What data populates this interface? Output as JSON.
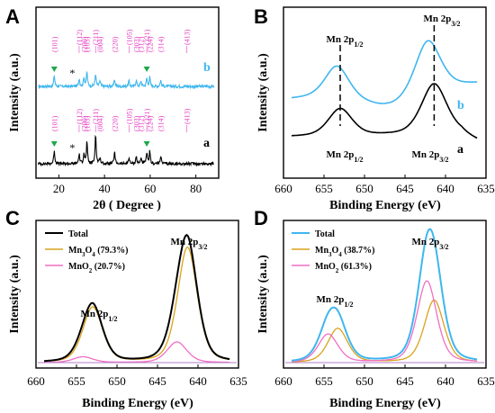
{
  "colors": {
    "blue": "#3fb6ee",
    "black": "#000000",
    "orange": "#d9a21b",
    "pink": "#ef6fc3",
    "magenta": "#e43fbf",
    "green": "#1fa84b"
  },
  "panels": {
    "A": {
      "label": "A",
      "xlabel": "2θ ( Degree )",
      "ylabel": "Intensity (a.u.)",
      "curve_b": "b",
      "curve_a": "a"
    },
    "B": {
      "label": "B",
      "xlabel": "Binding Energy (eV)",
      "ylabel": "Intensity (a.u.)",
      "curve_b": "b",
      "curve_a": "a",
      "ann_p12_top": "Mn 2p1/2",
      "ann_p32_top": "Mn 2p3/2",
      "ann_p12_bot": "Mn 2p1/2",
      "ann_p32_bot": "Mn 2p3/2"
    },
    "C": {
      "label": "C",
      "xlabel": "Binding Energy (eV)",
      "ylabel": "Intensity (a.u.)",
      "ann_p12": "Mn 2p1/2",
      "ann_p32": "Mn 2p3/2"
    },
    "D": {
      "label": "D",
      "xlabel": "Binding Energy (eV)",
      "ylabel": "Intensity (a.u.)",
      "ann_p12": "Mn 2p1/2",
      "ann_p32": "Mn 2p3/2"
    }
  },
  "chart_data": [
    {
      "id": "A",
      "type": "line",
      "xlabel": "2θ ( Degree )",
      "ylabel": "Intensity (a.u.)",
      "xlim": [
        10,
        90
      ],
      "xticks": [
        20,
        40,
        60,
        80
      ],
      "series": [
        {
          "name": "b",
          "color": "#3fb6ee",
          "peaks": [
            [
              18.0,
              12
            ],
            [
              28.9,
              9
            ],
            [
              31.0,
              10
            ],
            [
              32.3,
              16
            ],
            [
              36.1,
              14
            ],
            [
              38.0,
              6
            ],
            [
              44.4,
              8
            ],
            [
              50.7,
              6
            ],
            [
              53.9,
              7
            ],
            [
              56.0,
              6
            ],
            [
              58.5,
              9
            ],
            [
              59.8,
              10
            ],
            [
              64.6,
              7
            ]
          ]
        },
        {
          "name": "a",
          "color": "#000000",
          "peaks": [
            [
              18.0,
              15
            ],
            [
              28.9,
              11
            ],
            [
              31.0,
              12
            ],
            [
              32.3,
              24
            ],
            [
              36.1,
              34
            ],
            [
              38.0,
              7
            ],
            [
              44.4,
              13
            ],
            [
              50.7,
              7
            ],
            [
              53.9,
              8
            ],
            [
              56.0,
              7
            ],
            [
              58.5,
              12
            ],
            [
              59.8,
              13
            ],
            [
              64.6,
              9
            ]
          ]
        }
      ],
      "planes": [
        {
          "label": "(101)",
          "x": 18.0
        },
        {
          "label": "(112)",
          "x": 28.9
        },
        {
          "label": "(200)",
          "x": 31.0
        },
        {
          "label": "(103)",
          "x": 32.3
        },
        {
          "label": "(211)",
          "x": 36.1
        },
        {
          "label": "(004)",
          "x": 38.0
        },
        {
          "label": "(220)",
          "x": 44.4
        },
        {
          "label": "(105)",
          "x": 50.7
        },
        {
          "label": "(303)",
          "x": 53.9
        },
        {
          "label": "(312)",
          "x": 56.0
        },
        {
          "label": "(321)",
          "x": 58.5
        },
        {
          "label": "(224)",
          "x": 59.8
        },
        {
          "label": "(314)",
          "x": 64.6
        },
        {
          "label": "(413)",
          "x": 76.0
        }
      ],
      "markers": {
        "green_triangle": [
          18.0,
          58.5
        ],
        "asterisk": [
          25.9
        ]
      }
    },
    {
      "id": "B",
      "type": "line",
      "xlabel": "Binding Energy (eV)",
      "ylabel": "Intensity (a.u.)",
      "xlim": [
        660,
        635
      ],
      "xticks": [
        660,
        655,
        650,
        645,
        640,
        635
      ],
      "series": [
        {
          "name": "b",
          "color": "#3fb6ee",
          "peak_positions": [
            653.4,
            642.2
          ]
        },
        {
          "name": "a",
          "color": "#000000",
          "peak_positions": [
            653.0,
            641.4
          ]
        }
      ],
      "dashed_lines": [
        653.0,
        641.4
      ]
    },
    {
      "id": "C",
      "type": "line",
      "xlabel": "Binding Energy (eV)",
      "ylabel": "Intensity (a.u.)",
      "xlim": [
        660,
        635
      ],
      "xticks": [
        660,
        655,
        650,
        645,
        640,
        635
      ],
      "legend": "top-left",
      "series": [
        {
          "name": "Total",
          "color": "#000000"
        },
        {
          "name": "Mn3O4 (79.3%)",
          "color": "#d9a21b",
          "peaks": [
            [
              653.0,
              0.48
            ],
            [
              641.3,
              1.0
            ]
          ]
        },
        {
          "name": "MnO2 (20.7%)",
          "color": "#ef6fc3",
          "peaks": [
            [
              654.2,
              0.05
            ],
            [
              642.6,
              0.18
            ]
          ]
        }
      ]
    },
    {
      "id": "D",
      "type": "line",
      "xlabel": "Binding Energy (eV)",
      "ylabel": "Intensity (a.u.)",
      "xlim": [
        660,
        635
      ],
      "xticks": [
        660,
        655,
        650,
        645,
        640,
        635
      ],
      "legend": "top-left",
      "series": [
        {
          "name": "Total",
          "color": "#3fb6ee"
        },
        {
          "name": "Mn3O4 (38.7%)",
          "color": "#d9a21b",
          "peaks": [
            [
              653.3,
              0.3
            ],
            [
              641.4,
              0.55
            ]
          ]
        },
        {
          "name": "MnO2 (61.3%)",
          "color": "#ef6fc3",
          "peaks": [
            [
              654.5,
              0.25
            ],
            [
              642.3,
              0.72
            ]
          ]
        }
      ]
    }
  ]
}
